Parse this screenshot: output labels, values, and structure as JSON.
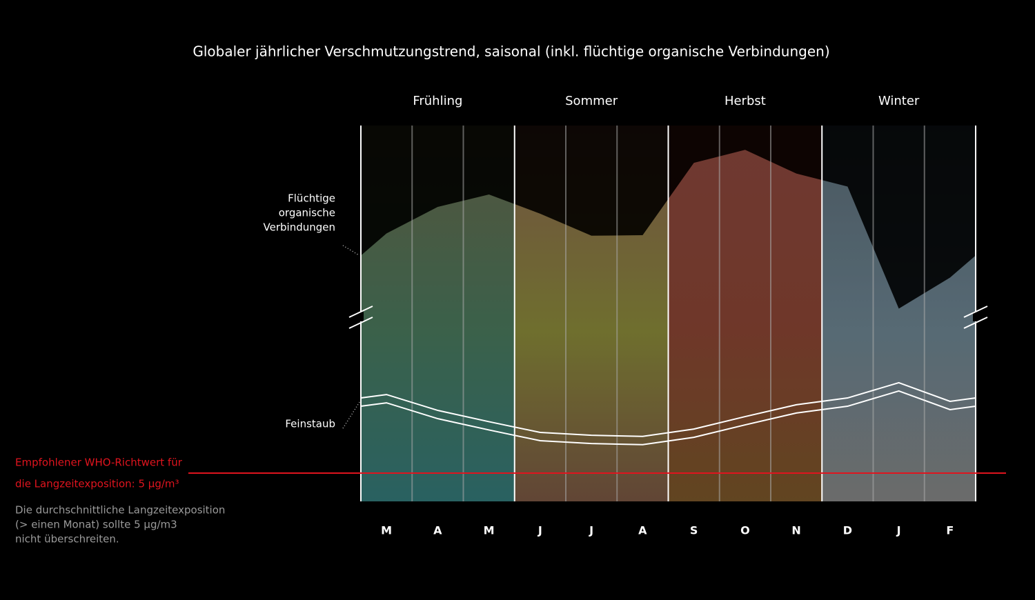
{
  "chart_data": {
    "type": "area",
    "title": "Globaler jährlicher Verschmutzungstrend, saisonal (inkl. flüchtige organische Verbindungen)",
    "categories": [
      "M",
      "A",
      "M",
      "J",
      "J",
      "A",
      "S",
      "O",
      "N",
      "D",
      "J",
      "F"
    ],
    "seasons": [
      {
        "name": "Frühling",
        "top": "#3c3a20",
        "mid": "#1e4a30",
        "bottom": "#0a4a4a"
      },
      {
        "name": "Sommer",
        "top": "#5a3626",
        "mid": "#5a5a10",
        "bottom": "#4a2a18"
      },
      {
        "name": "Herbst",
        "top": "#5a1c14",
        "mid": "#5a1a0a",
        "bottom": "#4a2a00"
      },
      {
        "name": "Winter",
        "top": "#2e3e48",
        "mid": "#3e5460",
        "bottom": "#555555"
      }
    ],
    "series": [
      {
        "label_lines": [
          "Flüchtige",
          "organische",
          "Verbindungen"
        ],
        "kind": "area",
        "color": "#ffffff",
        "values": [
          47.4,
          52.1,
          54.3,
          50.9,
          47.0,
          47.1,
          59.9,
          62.2,
          58.0,
          55.7,
          34.1,
          39.6
        ]
      },
      {
        "label_lines": [
          "Feinstaub"
        ],
        "kind": "line",
        "color": "#ffffff",
        "values": [
          18.9,
          16.1,
          14.1,
          12.2,
          11.7,
          11.5,
          12.8,
          15.0,
          17.1,
          18.3,
          21.0,
          17.7
        ]
      }
    ],
    "ylim": [
      0,
      66.5
    ],
    "who": {
      "value": 5,
      "color": "#e0141e",
      "label_lines": [
        "Empfohlener WHO-Richtwert für",
        "die Langzeitexposition: 5 µg/m³"
      ]
    },
    "note_lines": [
      "Die durchschnittliche Langzeitexposition",
      "(> einen Monat)  sollte 5 µg/m3",
      "nicht überschreiten."
    ]
  }
}
